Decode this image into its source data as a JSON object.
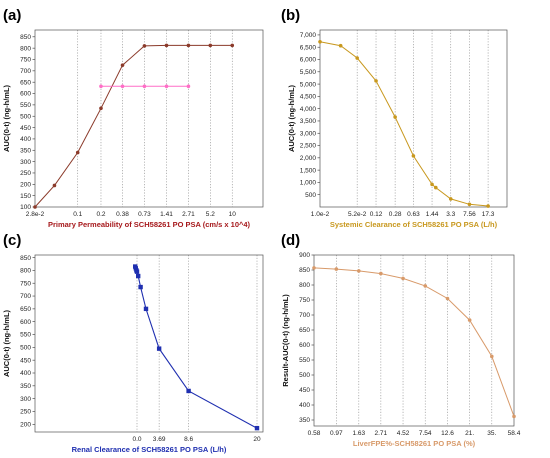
{
  "chart_data": [
    {
      "panel": "(a)",
      "type": "line",
      "xscale": "log",
      "x_tick_labels": [
        "2.8e-2",
        "0.1",
        "0.2",
        "0.38",
        "0.73",
        "1.41",
        "2.71",
        "5.2",
        "10"
      ],
      "x_tick_values": [
        0.028,
        0.1,
        0.2,
        0.38,
        0.73,
        1.41,
        2.71,
        5.2,
        10
      ],
      "xlim": [
        0.028,
        25
      ],
      "ylim": [
        100,
        880
      ],
      "y_ticks": [
        100,
        150,
        200,
        250,
        300,
        350,
        400,
        450,
        500,
        550,
        600,
        650,
        700,
        750,
        800,
        850
      ],
      "ylabel": "AUC(0-t) (ng-h/mL)",
      "xlabel": "Primary Permeability of SCH58261 PO PSA (cm/s x 10^4)",
      "grid": "vertical dotted",
      "series": [
        {
          "color": "#8b3a2a",
          "points": [
            [
              0.028,
              100
            ],
            [
              0.05,
              195
            ],
            [
              0.1,
              340
            ],
            [
              0.2,
              535
            ],
            [
              0.38,
              725
            ],
            [
              0.73,
              810
            ],
            [
              1.41,
              812
            ],
            [
              2.71,
              812
            ],
            [
              5.2,
              812
            ],
            [
              10,
              812
            ]
          ]
        },
        {
          "color": "#ff6ec7",
          "points": [
            [
              0.2,
              632
            ],
            [
              0.38,
              632
            ],
            [
              0.73,
              632
            ],
            [
              1.41,
              632
            ],
            [
              2.71,
              632
            ]
          ]
        }
      ]
    },
    {
      "panel": "(b)",
      "type": "line",
      "xscale": "log",
      "x_tick_labels": [
        "1.0e-2",
        "5.2e-2",
        "0.12",
        "0.28",
        "0.63",
        "1.44",
        "3.3",
        "7.56",
        "17.3"
      ],
      "x_tick_values": [
        0.01,
        0.052,
        0.12,
        0.28,
        0.63,
        1.44,
        3.3,
        7.56,
        17.3
      ],
      "xlim": [
        0.01,
        40
      ],
      "ylim": [
        0,
        7200
      ],
      "y_ticks": [
        500,
        1000,
        1500,
        2000,
        2500,
        3000,
        3500,
        4000,
        4500,
        5000,
        5500,
        6000,
        6500,
        7000
      ],
      "y_tick_labels": [
        "500",
        "1,000",
        "1,500",
        "2,000",
        "2,500",
        "3,000",
        "3,500",
        "4,000",
        "4,500",
        "5,000",
        "5,500",
        "6,000",
        "6,500",
        "7,000"
      ],
      "ylabel": "AUC(0-t) (ng-h/mL)",
      "xlabel": "Systemic Clearance of SCH58261 PO PSA (L/h)",
      "grid": "vertical dotted",
      "series": [
        {
          "color": "#c8981e",
          "points": [
            [
              0.01,
              6720
            ],
            [
              0.025,
              6560
            ],
            [
              0.052,
              6060
            ],
            [
              0.12,
              5130
            ],
            [
              0.28,
              3660
            ],
            [
              0.63,
              2080
            ],
            [
              1.44,
              920
            ],
            [
              1.7,
              790
            ],
            [
              3.3,
              330
            ],
            [
              7.56,
              110
            ],
            [
              17.3,
              40
            ]
          ]
        }
      ]
    },
    {
      "panel": "(c)",
      "type": "line",
      "xscale": "linear",
      "x_tick_labels": [
        "0.0",
        "3.69",
        "8.6",
        "20"
      ],
      "x_tick_values": [
        0.0,
        3.69,
        8.6,
        20
      ],
      "xlim": [
        -17,
        21
      ],
      "ylim": [
        170,
        860
      ],
      "y_ticks": [
        200,
        250,
        300,
        350,
        400,
        450,
        500,
        550,
        600,
        650,
        700,
        750,
        800,
        850
      ],
      "ylabel": "AUC(0-t) (ng-h/mL)",
      "xlabel": "Renal Clearance of SCH58261 PO PSA (L/h)",
      "grid": "vertical dotted",
      "series": [
        {
          "color": "#1f2fb0",
          "points": [
            [
              -0.3,
              815
            ],
            [
              -0.2,
              808
            ],
            [
              -0.1,
              800
            ],
            [
              0.0,
              795
            ],
            [
              0.2,
              778
            ],
            [
              0.6,
              735
            ],
            [
              1.5,
              650
            ],
            [
              3.69,
              495
            ],
            [
              8.6,
              330
            ],
            [
              20,
              185
            ]
          ]
        }
      ]
    },
    {
      "panel": "(d)",
      "type": "line",
      "xscale": "log",
      "x_tick_labels": [
        "0.58",
        "0.97",
        "1.63",
        "2.71",
        "4.52",
        "7.54",
        "12.6",
        "21.",
        "35.",
        "58.4"
      ],
      "x_tick_values": [
        0.58,
        0.97,
        1.63,
        2.71,
        4.52,
        7.54,
        12.6,
        21,
        35,
        58.4
      ],
      "xlim": [
        0.58,
        58.4
      ],
      "ylim": [
        330,
        900
      ],
      "y_ticks": [
        350,
        400,
        450,
        500,
        550,
        600,
        650,
        700,
        750,
        800,
        850,
        900
      ],
      "ylabel": "Result-AUC(0-t) (ng-h/mL)",
      "xlabel": "LiverFPE%-SCH58261 PO PSA (%)",
      "grid": "vertical dotted",
      "series": [
        {
          "color": "#d89a6a",
          "points": [
            [
              0.58,
              857
            ],
            [
              0.97,
              853
            ],
            [
              1.63,
              847
            ],
            [
              2.71,
              838
            ],
            [
              4.52,
              822
            ],
            [
              7.54,
              797
            ],
            [
              12.6,
              755
            ],
            [
              21,
              683
            ],
            [
              35,
              562
            ],
            [
              58.4,
              362
            ]
          ]
        }
      ]
    }
  ]
}
